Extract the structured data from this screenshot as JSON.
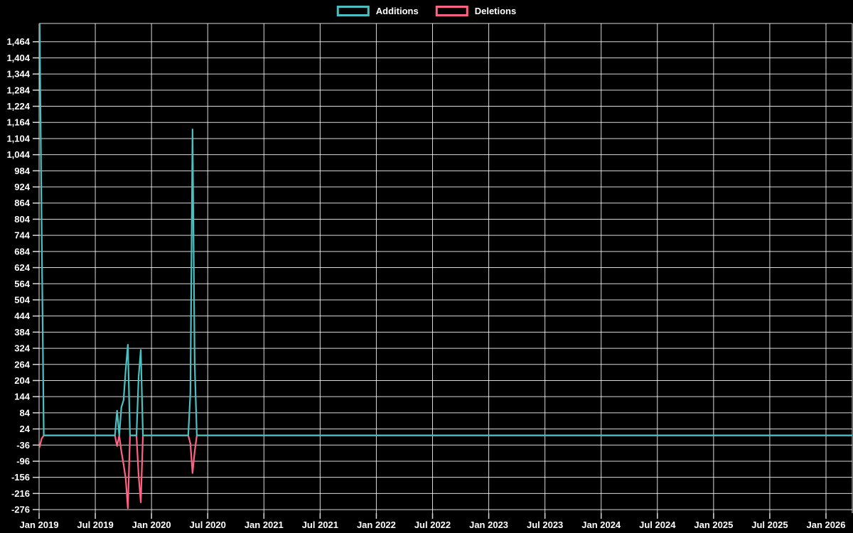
{
  "chart": {
    "background": "#000000",
    "grid_color": "rgba(255,255,255,0.85)",
    "text_color": "#ffffff"
  },
  "legend": {
    "items": [
      {
        "label": "Additions",
        "color": "#4bc0c0"
      },
      {
        "label": "Deletions",
        "color": "#ff6384"
      }
    ]
  },
  "chart_data": {
    "type": "line",
    "title": "",
    "xlabel": "",
    "ylabel": "",
    "grid": true,
    "legend_position": "top-center",
    "x_axis": {
      "tick_labels": [
        "Jan 2019",
        "Jul 2019",
        "Jan 2020",
        "Jul 2020",
        "Jan 2021",
        "Jul 2021",
        "Jan 2022",
        "Jul 2022",
        "Jan 2023",
        "Jul 2023",
        "Jan 2024",
        "Jul 2024",
        "Jan 2025",
        "Jul 2025",
        "Jan 2026"
      ],
      "points_are": "weekly samples from Jan 2019 to right edge (~Mar 2026)"
    },
    "y_axis": {
      "tick_min": -276,
      "tick_max": 1464,
      "tick_step": 60,
      "ylim": [
        -289,
        1532
      ]
    },
    "weeks_total": 377,
    "series": [
      {
        "name": "Additions",
        "color": "#4bc0c0",
        "default_value": 0,
        "note": "first weekly point exceeds visible axis range (spike clipped at chart top)",
        "spikes": {
          "0": 1600,
          "1": 792,
          "2": 0,
          "36": 92,
          "37": 0,
          "38": 105,
          "39": 130,
          "40": 244,
          "41": 337,
          "42": 0,
          "46": 218,
          "47": 318,
          "48": 0,
          "70": 157,
          "71": 1138,
          "72": 263,
          "73": 0
        }
      },
      {
        "name": "Deletions",
        "color": "#ff6384",
        "default_value": 0,
        "spikes": {
          "0": -45,
          "1": -12,
          "2": 0,
          "36": -40,
          "37": 0,
          "38": -60,
          "39": -107,
          "40": -160,
          "41": -271,
          "42": 0,
          "46": -150,
          "47": -249,
          "48": 0,
          "70": -30,
          "71": -140,
          "72": -60,
          "73": 0
        }
      }
    ]
  }
}
